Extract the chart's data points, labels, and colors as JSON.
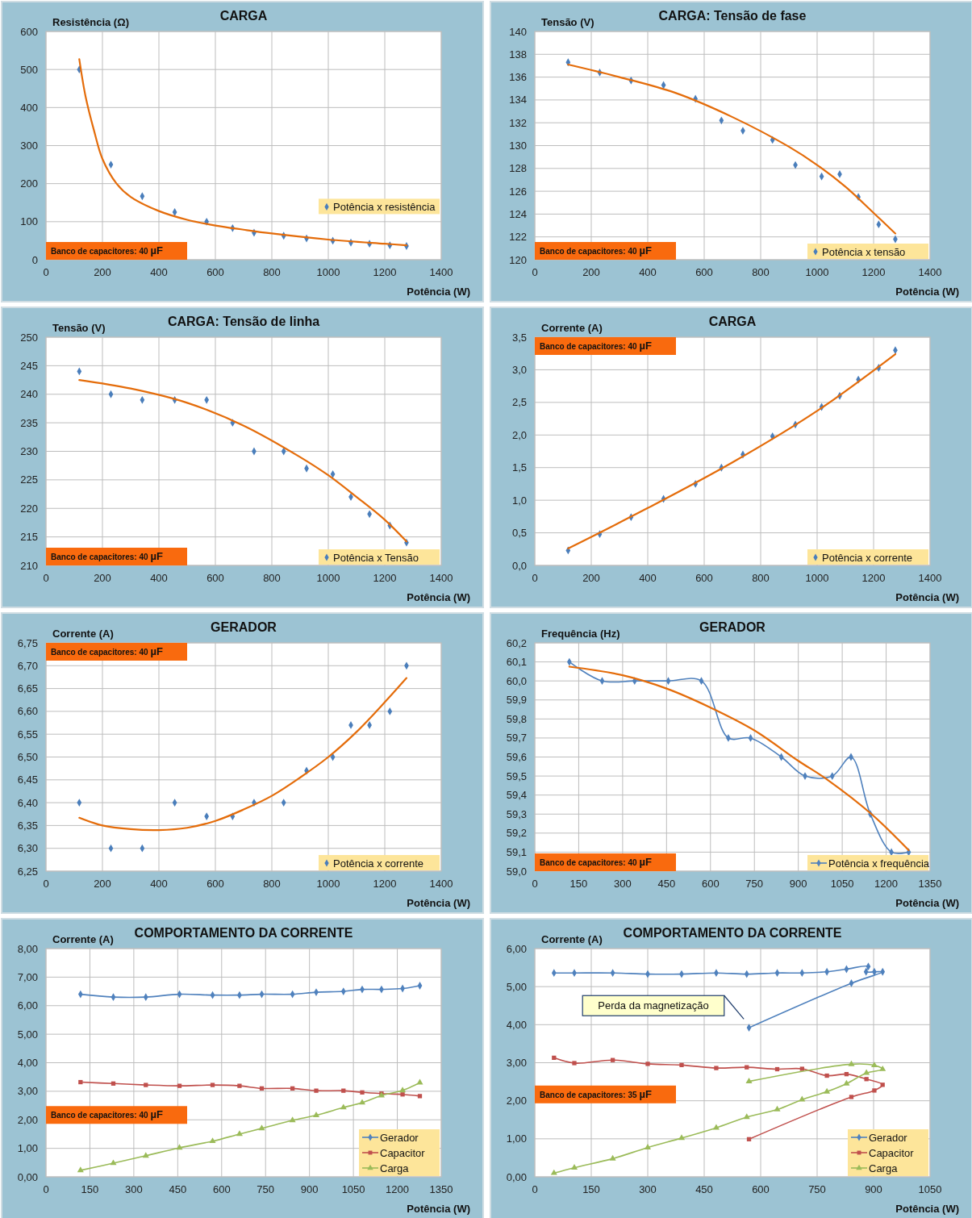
{
  "chart_data": [
    {
      "type": "scatter",
      "title": "CARGA",
      "xlabel": "Potência (W)",
      "ylabel": "Resistência (Ω)",
      "annotations": [
        "Banco de capacitores: 40 µF"
      ],
      "xlim": [
        0,
        1400
      ],
      "xticks": [
        0,
        200,
        400,
        600,
        800,
        1000,
        1200,
        1400
      ],
      "ylim": [
        0,
        600
      ],
      "yticks": [
        0,
        100,
        200,
        300,
        400,
        500,
        600
      ],
      "grid": true,
      "legend": "right",
      "x": [
        118,
        230,
        341,
        456,
        569,
        661,
        737,
        842,
        923,
        1016,
        1080,
        1146,
        1218,
        1277
      ],
      "series": [
        {
          "name": "Potência x resistência",
          "color": "#4a7ebb",
          "marker": "diamond",
          "values": [
            500,
            250,
            167,
            125,
            100,
            83,
            71,
            63,
            56,
            50,
            45,
            42,
            38,
            36
          ]
        },
        {
          "type": "line",
          "color": "#e46c0a",
          "x": [
            118,
            140,
            170,
            200,
            250,
            300,
            400,
            500,
            600,
            700,
            800,
            1000,
            1200,
            1277
          ],
          "values": [
            527,
            430,
            340,
            265,
            200,
            165,
            128,
            105,
            90,
            79,
            69,
            53,
            42,
            38
          ]
        }
      ]
    },
    {
      "type": "scatter",
      "title": "CARGA: Tensão de fase",
      "xlabel": "Potência (W)",
      "ylabel": "Tensão (V)",
      "annotations": [
        "Banco de capacitores: 40 µF"
      ],
      "xlim": [
        0,
        1400
      ],
      "xticks": [
        0,
        200,
        400,
        600,
        800,
        1000,
        1200,
        1400
      ],
      "ylim": [
        120,
        140
      ],
      "yticks": [
        120,
        122,
        124,
        126,
        128,
        130,
        132,
        134,
        136,
        138,
        140
      ],
      "grid": true,
      "legend": "bottom right",
      "x": [
        118,
        230,
        341,
        456,
        569,
        661,
        737,
        842,
        923,
        1016,
        1080,
        1146,
        1218,
        1277
      ],
      "series": [
        {
          "name": "Potência x tensão",
          "color": "#4a7ebb",
          "marker": "diamond",
          "values": [
            137.3,
            136.4,
            135.7,
            135.3,
            134.1,
            132.2,
            131.3,
            130.5,
            128.3,
            127.3,
            127.5,
            125.5,
            123.1,
            121.8
          ]
        },
        {
          "type": "line",
          "color": "#e46c0a",
          "x": [
            118,
            300,
            500,
            700,
            900,
            1000,
            1100,
            1200,
            1277
          ],
          "values": [
            137.1,
            136.0,
            134.6,
            132.5,
            129.9,
            128.3,
            126.4,
            124.1,
            122.3
          ]
        }
      ]
    },
    {
      "type": "scatter",
      "title": "CARGA: Tensão de linha",
      "xlabel": "Potência (W)",
      "ylabel": "Tensão (V)",
      "annotations": [
        "Banco de capacitores: 40 µF"
      ],
      "xlim": [
        0,
        1400
      ],
      "xticks": [
        0,
        200,
        400,
        600,
        800,
        1000,
        1200,
        1400
      ],
      "ylim": [
        210,
        250
      ],
      "yticks": [
        210,
        215,
        220,
        225,
        230,
        235,
        240,
        245,
        250
      ],
      "grid": true,
      "legend": "bottom right",
      "x": [
        118,
        230,
        341,
        456,
        569,
        661,
        737,
        842,
        923,
        1016,
        1080,
        1146,
        1218,
        1277
      ],
      "series": [
        {
          "name": "Potência x Tensão",
          "color": "#4a7ebb",
          "marker": "diamond",
          "values": [
            244,
            240,
            239,
            239,
            239,
            235,
            230,
            230,
            227,
            226,
            222,
            219,
            217,
            214
          ]
        },
        {
          "type": "line",
          "color": "#e46c0a",
          "x": [
            118,
            300,
            500,
            700,
            900,
            1000,
            1100,
            1200,
            1277
          ],
          "values": [
            242.5,
            241,
            238.5,
            234.5,
            229,
            225.8,
            222,
            218,
            214.2
          ]
        }
      ]
    },
    {
      "type": "scatter",
      "title": "CARGA",
      "xlabel": "Potência (W)",
      "ylabel": "Corrente (A)",
      "annotations": [
        "Banco de capacitores: 40 µF"
      ],
      "xlim": [
        0,
        1400
      ],
      "xticks": [
        0,
        200,
        400,
        600,
        800,
        1000,
        1200,
        1400
      ],
      "ylim": [
        0,
        3.5
      ],
      "yticks": [
        {
          "value": 0,
          "label": "0,0"
        },
        {
          "value": 0.5,
          "label": "0,5"
        },
        {
          "value": 1,
          "label": "1,0"
        },
        {
          "value": 1.5,
          "label": "1,5"
        },
        {
          "value": 2,
          "label": "2,0"
        },
        {
          "value": 2.5,
          "label": "2,5"
        },
        {
          "value": 3,
          "label": "3,0"
        },
        {
          "value": 3.5,
          "label": "3,5"
        }
      ],
      "grid": true,
      "legend": "bottom right",
      "x": [
        118,
        230,
        341,
        456,
        569,
        661,
        737,
        842,
        923,
        1016,
        1080,
        1146,
        1218,
        1277
      ],
      "series": [
        {
          "name": "Potência x corrente",
          "color": "#4a7ebb",
          "marker": "diamond",
          "values": [
            0.23,
            0.48,
            0.74,
            1.02,
            1.25,
            1.5,
            1.7,
            1.98,
            2.16,
            2.43,
            2.6,
            2.85,
            3.03,
            3.3
          ]
        },
        {
          "type": "line",
          "color": "#e46c0a",
          "x": [
            118,
            400,
            700,
            1000,
            1277
          ],
          "values": [
            0.26,
            0.88,
            1.58,
            2.37,
            3.24
          ]
        }
      ]
    },
    {
      "type": "scatter",
      "title": "GERADOR",
      "xlabel": "Potência (W)",
      "ylabel": "Corrente (A)",
      "annotations": [
        "Banco de capacitores: 40 µF"
      ],
      "xlim": [
        0,
        1400
      ],
      "xticks": [
        0,
        200,
        400,
        600,
        800,
        1000,
        1200,
        1400
      ],
      "ylim": [
        6.25,
        6.75
      ],
      "yticks": [
        {
          "value": 6.25,
          "label": "6,25"
        },
        {
          "value": 6.3,
          "label": "6,30"
        },
        {
          "value": 6.35,
          "label": "6,35"
        },
        {
          "value": 6.4,
          "label": "6,40"
        },
        {
          "value": 6.45,
          "label": "6,45"
        },
        {
          "value": 6.5,
          "label": "6,50"
        },
        {
          "value": 6.55,
          "label": "6,55"
        },
        {
          "value": 6.6,
          "label": "6,60"
        },
        {
          "value": 6.65,
          "label": "6,65"
        },
        {
          "value": 6.7,
          "label": "6,70"
        },
        {
          "value": 6.75,
          "label": "6,75"
        }
      ],
      "grid": true,
      "legend": "bottom right",
      "x": [
        118,
        230,
        341,
        456,
        569,
        661,
        737,
        842,
        923,
        1016,
        1080,
        1146,
        1218,
        1277
      ],
      "series": [
        {
          "name": "Potência x corrente",
          "color": "#4a7ebb",
          "marker": "diamond",
          "values": [
            6.4,
            6.3,
            6.3,
            6.4,
            6.37,
            6.37,
            6.4,
            6.4,
            6.47,
            6.5,
            6.57,
            6.57,
            6.6,
            6.7
          ]
        },
        {
          "type": "line",
          "color": "#e46c0a",
          "x": [
            118,
            200,
            300,
            400,
            500,
            600,
            700,
            800,
            900,
            1000,
            1100,
            1200,
            1277
          ],
          "values": [
            6.367,
            6.35,
            6.342,
            6.34,
            6.345,
            6.36,
            6.385,
            6.415,
            6.455,
            6.5,
            6.555,
            6.62,
            6.673
          ]
        }
      ]
    },
    {
      "type": "scatter",
      "title": "GERADOR",
      "xlabel": "Potência (W)",
      "ylabel": "Frequência (Hz)",
      "annotations": [
        "Banco de capacitores: 40 µF"
      ],
      "xlim": [
        0,
        1350
      ],
      "xticks": [
        0,
        150,
        300,
        450,
        600,
        750,
        900,
        1050,
        1200,
        1350
      ],
      "ylim": [
        59,
        60.2
      ],
      "yticks": [
        {
          "value": 59,
          "label": "59,0"
        },
        {
          "value": 59.1,
          "label": "59,1"
        },
        {
          "value": 59.2,
          "label": "59,2"
        },
        {
          "value": 59.3,
          "label": "59,3"
        },
        {
          "value": 59.4,
          "label": "59,4"
        },
        {
          "value": 59.5,
          "label": "59,5"
        },
        {
          "value": 59.6,
          "label": "59,6"
        },
        {
          "value": 59.7,
          "label": "59,7"
        },
        {
          "value": 59.8,
          "label": "59,8"
        },
        {
          "value": 59.9,
          "label": "59,9"
        },
        {
          "value": 60,
          "label": "60,0"
        },
        {
          "value": 60.1,
          "label": "60,1"
        },
        {
          "value": 60.2,
          "label": "60,2"
        }
      ],
      "grid": true,
      "legend": "bottom right",
      "x": [
        118,
        230,
        341,
        456,
        569,
        661,
        737,
        842,
        923,
        1016,
        1080,
        1146,
        1218,
        1277
      ],
      "series": [
        {
          "name": "Potência x frequência",
          "type": "line",
          "color": "#4f81bd",
          "marker": "diamond",
          "values": [
            60.1,
            60,
            60,
            60,
            60,
            59.7,
            59.7,
            59.6,
            59.5,
            59.5,
            59.6,
            59.3,
            59.1,
            59.1
          ]
        },
        {
          "type": "line",
          "color": "#e46c0a",
          "x": [
            118,
            300,
            450,
            600,
            750,
            900,
            1000,
            1150,
            1277
          ],
          "values": [
            60.075,
            60.03,
            59.96,
            59.86,
            59.74,
            59.58,
            59.48,
            59.3,
            59.11
          ]
        }
      ]
    },
    {
      "type": "line",
      "title": "COMPORTAMENTO DA CORRENTE",
      "xlabel": "Potência (W)",
      "ylabel": "Corrente (A)",
      "annotations": [
        "Banco de capacitores: 40 µF"
      ],
      "xlim": [
        0,
        1350
      ],
      "xticks": [
        0,
        150,
        300,
        450,
        600,
        750,
        900,
        1050,
        1200,
        1350
      ],
      "ylim": [
        0,
        8
      ],
      "yticks": [
        {
          "value": 0,
          "label": "0,00"
        },
        {
          "value": 1,
          "label": "1,00"
        },
        {
          "value": 2,
          "label": "2,00"
        },
        {
          "value": 3,
          "label": "3,00"
        },
        {
          "value": 4,
          "label": "4,00"
        },
        {
          "value": 5,
          "label": "5,00"
        },
        {
          "value": 6,
          "label": "6,00"
        },
        {
          "value": 7,
          "label": "7,00"
        },
        {
          "value": 8,
          "label": "8,00"
        }
      ],
      "grid": true,
      "legend": "bottom right",
      "x": [
        118,
        230,
        341,
        456,
        569,
        661,
        737,
        842,
        923,
        1016,
        1080,
        1146,
        1218,
        1277
      ],
      "series": [
        {
          "name": "Gerador",
          "color": "#4f81bd",
          "marker": "diamond",
          "values": [
            6.4,
            6.3,
            6.3,
            6.4,
            6.37,
            6.37,
            6.4,
            6.4,
            6.47,
            6.5,
            6.57,
            6.57,
            6.6,
            6.7
          ]
        },
        {
          "name": "Capacitor",
          "color": "#c0504d",
          "marker": "square",
          "values": [
            3.32,
            3.27,
            3.22,
            3.19,
            3.22,
            3.19,
            3.1,
            3.1,
            3.02,
            3.02,
            2.96,
            2.92,
            2.89,
            2.83
          ]
        },
        {
          "name": "Carga",
          "color": "#9bbb59",
          "marker": "triangle",
          "values": [
            0.23,
            0.48,
            0.74,
            1.02,
            1.25,
            1.5,
            1.7,
            1.98,
            2.16,
            2.43,
            2.6,
            2.85,
            3.03,
            3.3
          ]
        }
      ]
    },
    {
      "type": "line",
      "title": "COMPORTAMENTO DA CORRENTE",
      "xlabel": "Potência (W)",
      "ylabel": "Corrente (A)",
      "annotations": [
        "Banco de capacitores: 35 µF",
        "Perda da magnetização"
      ],
      "xlim": [
        0,
        1050
      ],
      "xticks": [
        0,
        150,
        300,
        450,
        600,
        750,
        900,
        1050
      ],
      "ylim": [
        0,
        6
      ],
      "yticks": [
        {
          "value": 0,
          "label": "0,00"
        },
        {
          "value": 1,
          "label": "1,00"
        },
        {
          "value": 2,
          "label": "2,00"
        },
        {
          "value": 3,
          "label": "3,00"
        },
        {
          "value": 4,
          "label": "4,00"
        },
        {
          "value": 5,
          "label": "5,00"
        },
        {
          "value": 6,
          "label": "6,00"
        }
      ],
      "grid": true,
      "legend": "bottom right",
      "series": [
        {
          "name": "Gerador",
          "color": "#4f81bd",
          "marker": "diamond",
          "x": [
            51,
            105,
            207,
            300,
            390,
            482,
            563,
            644,
            710,
            776,
            828,
            886,
            880,
            902,
            924,
            841,
            569
          ],
          "values": [
            5.36,
            5.36,
            5.36,
            5.33,
            5.33,
            5.36,
            5.33,
            5.36,
            5.36,
            5.39,
            5.46,
            5.53,
            5.39,
            5.39,
            5.39,
            5.09,
            3.92
          ]
        },
        {
          "name": "Capacitor",
          "color": "#c0504d",
          "marker": "square",
          "x": [
            51,
            105,
            207,
            300,
            390,
            482,
            563,
            644,
            710,
            776,
            828,
            881,
            924,
            902,
            841,
            569
          ],
          "values": [
            3.13,
            2.99,
            3.07,
            2.97,
            2.94,
            2.86,
            2.88,
            2.83,
            2.84,
            2.66,
            2.7,
            2.57,
            2.42,
            2.27,
            2.1,
            0.99
          ]
        },
        {
          "name": "Carga",
          "color": "#9bbb59",
          "marker": "triangle",
          "x": [
            51,
            105,
            207,
            300,
            390,
            482,
            563,
            644,
            710,
            776,
            828,
            881,
            924,
            902,
            841,
            569
          ],
          "values": [
            0.1,
            0.24,
            0.48,
            0.77,
            1.02,
            1.29,
            1.57,
            1.77,
            2.03,
            2.24,
            2.45,
            2.73,
            2.83,
            2.93,
            2.96,
            2.51
          ]
        }
      ]
    }
  ]
}
